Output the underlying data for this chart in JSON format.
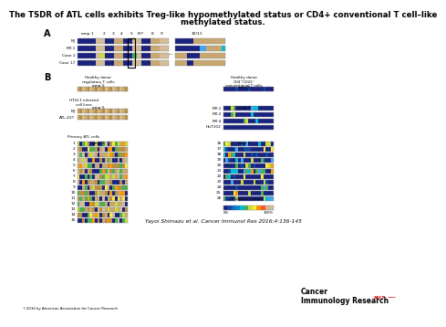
{
  "title_line1": "The TSDR of ATL cells exhibits Treg-like hypomethylated status or CD4+ conventional T cell–like",
  "title_line2": "methylated status.",
  "citation": "Yayoi Shimazu et al. Cancer Immunol Res 2016;4:136-145",
  "copyright": "©2016 by American Association for Cancer Research",
  "journal_line1": "Cancer",
  "journal_line2": "Immunology Research",
  "background": "#ffffff",
  "blue_dark": "#1a237e",
  "blue_mid": "#283593",
  "blue_light": "#42a5f5",
  "tan": "#c8a870",
  "tan_light": "#d4bc96",
  "gold": "#b89040",
  "green": "#4caf50",
  "green_yellow": "#cddc39",
  "yellow": "#ffeb3b",
  "orange": "#ff9800",
  "cyan": "#00bcd4",
  "navy": "#0d47a1",
  "teal": "#26c6da"
}
